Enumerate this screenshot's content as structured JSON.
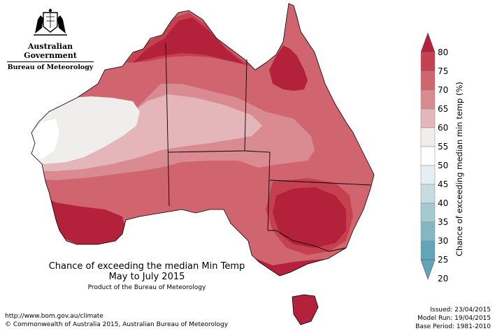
{
  "header": {
    "agency": "Australian Government",
    "bureau": "Bureau of Meteorology",
    "logo_icon": "coat-of-arms-icon"
  },
  "map": {
    "title": "Chance of exceeding the median Min Temp",
    "period": "May to July 2015",
    "credit": "Product of the Bureau of Meteorology"
  },
  "legend": {
    "label": "Chance of exceeding median min temp (%)",
    "ticks": [
      "80",
      "75",
      "70",
      "65",
      "60",
      "55",
      "50",
      "45",
      "40",
      "35",
      "30",
      "25",
      "20"
    ],
    "colors": [
      "#c5414f",
      "#d0656f",
      "#da8b92",
      "#e5b6b9",
      "#f0eeec",
      "#ffffff",
      "#e4eef3",
      "#c6dce1",
      "#a5c9d1",
      "#84b7c4",
      "#62a5b9"
    ],
    "top_color": "#b3213b",
    "bottom_color": "#62a5b9"
  },
  "footer": {
    "url": "http://www.bom.gov.au/climate",
    "copyright": "© Commonwealth of Australia 2015, Australian Bureau of Meteorology",
    "issued": "Issued: 23/04/2015",
    "model_run": "Model Run: 19/04/2015",
    "base_period": "Base Period: 1981-2010"
  }
}
